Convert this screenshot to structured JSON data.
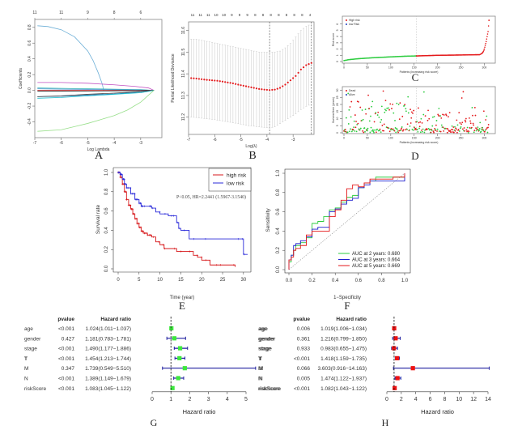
{
  "chart_data": [
    {
      "id": "A",
      "type": "line",
      "panel_label": "A",
      "title": "",
      "xlabel": "Log Lambda",
      "ylabel": "Coefficients",
      "xlim": [
        -7,
        -2.2
      ],
      "ylim": [
        -0.58,
        0.88
      ],
      "xticks": [
        -7,
        -6,
        -5,
        -4,
        -3
      ],
      "yticks": [
        -0.4,
        -0.2,
        0.0,
        0.2,
        0.4,
        0.6,
        0.8
      ],
      "top_axis_labels": [
        "11",
        "11",
        "9",
        "8",
        "6"
      ],
      "top_axis_positions": [
        -7,
        -6,
        -5,
        -4,
        -3
      ],
      "series": [
        {
          "name": "path1",
          "color": "#6baed6",
          "x": [
            -6.9,
            -6.5,
            -6.0,
            -5.5,
            -5.0,
            -4.8,
            -4.6,
            -4.45,
            -4.4
          ],
          "y": [
            0.82,
            0.81,
            0.77,
            0.68,
            0.5,
            0.38,
            0.22,
            0.08,
            0.0
          ]
        },
        {
          "name": "path2",
          "color": "#c251c2",
          "x": [
            -6.9,
            -6.0,
            -5.0,
            -4.0,
            -3.2,
            -2.7,
            -2.5
          ],
          "y": [
            0.1,
            0.1,
            0.09,
            0.07,
            0.05,
            0.03,
            0.0
          ]
        },
        {
          "name": "path3",
          "color": "#31b3b3",
          "x": [
            -6.9,
            -6.0,
            -5.0,
            -4.0,
            -3.0,
            -2.5
          ],
          "y": [
            0.03,
            0.025,
            0.02,
            0.015,
            0.01,
            0.0
          ]
        },
        {
          "name": "path4",
          "color": "#5b9bd5",
          "x": [
            -6.9,
            -6.0,
            -5.0,
            -4.0,
            -3.0,
            -2.5
          ],
          "y": [
            0.02,
            0.015,
            0.012,
            0.008,
            0.004,
            0.0
          ]
        },
        {
          "name": "path5",
          "color": "#d62728",
          "x": [
            -6.9,
            -6.0,
            -5.0,
            -4.0,
            -3.0,
            -2.5
          ],
          "y": [
            0.0,
            0.0,
            0.0,
            0.0,
            0.0,
            0.0
          ]
        },
        {
          "name": "path6",
          "color": "#222222",
          "x": [
            -6.9,
            -6.0,
            -5.0,
            -4.0,
            -3.0,
            -2.5
          ],
          "y": [
            -0.01,
            -0.01,
            -0.008,
            -0.006,
            -0.003,
            0.0
          ]
        },
        {
          "name": "path7",
          "color": "#1f77b4",
          "x": [
            -6.9,
            -6.0,
            -5.0,
            -4.0,
            -3.0,
            -2.5
          ],
          "y": [
            -0.08,
            -0.075,
            -0.06,
            -0.045,
            -0.02,
            0.0
          ]
        },
        {
          "name": "path8",
          "color": "#444444",
          "x": [
            -6.9,
            -6.0,
            -5.0,
            -4.0,
            -3.0,
            -2.5
          ],
          "y": [
            -0.08,
            -0.07,
            -0.05,
            -0.035,
            -0.015,
            0.0
          ]
        },
        {
          "name": "path9",
          "color": "#17becf",
          "x": [
            -6.9,
            -6.0,
            -5.0,
            -4.0,
            -3.0,
            -2.5
          ],
          "y": [
            -0.1,
            -0.09,
            -0.07,
            -0.05,
            -0.03,
            0.0
          ]
        },
        {
          "name": "path10",
          "color": "#98df8a",
          "x": [
            -6.9,
            -6.0,
            -5.5,
            -5.0,
            -4.5,
            -4.0,
            -3.5,
            -3.0,
            -2.5
          ],
          "y": [
            -0.52,
            -0.5,
            -0.46,
            -0.42,
            -0.37,
            -0.32,
            -0.25,
            -0.15,
            0.0
          ]
        }
      ]
    },
    {
      "id": "B",
      "type": "line",
      "panel_label": "B",
      "xlabel": "Log(λ)",
      "ylabel": "Partial Likelihood Deviance",
      "xlim": [
        -7,
        -2.2
      ],
      "ylim": [
        11.12,
        11.64
      ],
      "xticks": [
        -7,
        -6,
        -5,
        -4,
        -3
      ],
      "yticks": [
        11.2,
        11.3,
        11.4,
        11.5,
        11.6
      ],
      "top_axis_labels": [
        "11",
        "11",
        "11",
        "10",
        "10",
        "9",
        "9",
        "9",
        "8",
        "8",
        "8",
        "8",
        "8",
        "8",
        "8",
        "4"
      ],
      "vlines": [
        -3.9,
        -2.3
      ],
      "series": [
        {
          "name": "cv-mean",
          "color": "#e41a1c",
          "x": [
            -6.9,
            -6.7,
            -6.5,
            -6.3,
            -6.1,
            -5.9,
            -5.7,
            -5.5,
            -5.3,
            -5.1,
            -4.9,
            -4.7,
            -4.5,
            -4.3,
            -4.1,
            -3.9,
            -3.7,
            -3.5,
            -3.3,
            -3.1,
            -2.9,
            -2.7,
            -2.5,
            -2.3
          ],
          "y": [
            11.38,
            11.378,
            11.375,
            11.372,
            11.37,
            11.368,
            11.364,
            11.36,
            11.356,
            11.35,
            11.345,
            11.34,
            11.335,
            11.33,
            11.327,
            11.325,
            11.327,
            11.335,
            11.35,
            11.37,
            11.39,
            11.42,
            11.44,
            11.45
          ],
          "upper": [
            11.56,
            11.56,
            11.555,
            11.55,
            11.545,
            11.54,
            11.535,
            11.53,
            11.525,
            11.52,
            11.515,
            11.51,
            11.505,
            11.5,
            11.5,
            11.5,
            11.5,
            11.505,
            11.52,
            11.54,
            11.57,
            11.6,
            11.62,
            11.63
          ],
          "lower": [
            11.2,
            11.198,
            11.195,
            11.192,
            11.19,
            11.186,
            11.182,
            11.178,
            11.174,
            11.17,
            11.165,
            11.16,
            11.158,
            11.155,
            11.152,
            11.15,
            11.155,
            11.17,
            11.185,
            11.2,
            11.215,
            11.235,
            11.25,
            11.26
          ]
        }
      ]
    },
    {
      "id": "C",
      "type": "scatter",
      "panel_label": "C",
      "xlabel": "Patients (increasing risk score)",
      "ylabel": "Risk score",
      "xlim": [
        0,
        320
      ],
      "ylim": [
        0,
        7
      ],
      "xticks": [
        0,
        50,
        100,
        150,
        200,
        250,
        300
      ],
      "yticks": [
        0,
        1,
        2,
        3,
        4,
        5,
        6
      ],
      "vline": 155,
      "legend": [
        {
          "label": "High risk",
          "color": "#e41a1c"
        },
        {
          "label": "low Risk",
          "color": "#1f3fbf"
        }
      ],
      "series": [
        {
          "name": "low risk",
          "color": "#2ecc40",
          "x": [
            0,
            10,
            30,
            60,
            100,
            130,
            155
          ],
          "y": [
            0.15,
            0.3,
            0.45,
            0.6,
            0.75,
            0.85,
            0.9
          ]
        },
        {
          "name": "high risk",
          "color": "#e41a1c",
          "x": [
            155,
            200,
            250,
            290,
            295,
            298,
            300,
            302,
            304,
            306,
            308,
            310
          ],
          "y": [
            0.9,
            1.0,
            1.05,
            1.1,
            1.3,
            1.6,
            2.0,
            2.6,
            3.2,
            4.0,
            4.8,
            6.6
          ]
        }
      ]
    },
    {
      "id": "D",
      "type": "scatter",
      "panel_label": "D",
      "xlabel": "Patients (increasing risk score)",
      "ylabel": "Survival time (years)",
      "xlim": [
        0,
        320
      ],
      "ylim": [
        0,
        32
      ],
      "xticks": [
        0,
        50,
        100,
        150,
        200,
        250,
        300
      ],
      "yticks": [
        0,
        5,
        10,
        15,
        20,
        25,
        30
      ],
      "vline": 155,
      "legend": [
        {
          "label": "Dead",
          "color": "#e41a1c"
        },
        {
          "label": "Alive",
          "color": "#1f3fbf"
        }
      ]
    },
    {
      "id": "E",
      "type": "line",
      "panel_label": "E",
      "xlabel": "Time (year)",
      "ylabel": "Survival rate",
      "xlim": [
        0,
        31
      ],
      "ylim": [
        0,
        1.0
      ],
      "xticks": [
        0,
        5,
        10,
        15,
        20,
        25,
        30
      ],
      "yticks": [
        0.0,
        0.2,
        0.4,
        0.6,
        0.8,
        1.0
      ],
      "annotation": "P<0.05, HR=2.2441 (1.5967-3.1540)",
      "legend": [
        {
          "label": "high risk",
          "color": "#d7191c"
        },
        {
          "label": "low risk",
          "color": "#2b2bd9"
        }
      ],
      "series": [
        {
          "name": "high risk",
          "color": "#d7191c",
          "x": [
            0,
            0.5,
            1,
            1.5,
            2,
            2.5,
            3,
            3.5,
            4,
            4.5,
            5,
            5.5,
            6,
            7,
            8,
            9,
            10,
            11,
            12,
            14,
            16,
            18,
            19,
            20,
            22,
            24,
            26,
            28
          ],
          "y": [
            1.0,
            0.95,
            0.88,
            0.8,
            0.72,
            0.66,
            0.62,
            0.57,
            0.52,
            0.47,
            0.43,
            0.39,
            0.37,
            0.35,
            0.33,
            0.28,
            0.25,
            0.21,
            0.21,
            0.18,
            0.18,
            0.14,
            0.12,
            0.09,
            0.04,
            0.04,
            0.04,
            0.02
          ]
        },
        {
          "name": "low risk",
          "color": "#2b2bd9",
          "x": [
            0,
            0.5,
            1,
            1.5,
            2,
            3,
            4,
            5,
            5.5,
            6,
            8,
            9,
            10,
            12,
            13,
            14,
            14.5,
            15,
            17,
            20,
            25,
            29.5,
            30,
            31
          ],
          "y": [
            1.0,
            0.98,
            0.93,
            0.88,
            0.84,
            0.78,
            0.72,
            0.68,
            0.65,
            0.65,
            0.63,
            0.59,
            0.57,
            0.55,
            0.55,
            0.48,
            0.42,
            0.4,
            0.31,
            0.31,
            0.31,
            0.31,
            0.15,
            0.15
          ]
        }
      ]
    },
    {
      "id": "F",
      "type": "line",
      "panel_label": "F",
      "xlabel": "1−Specificity",
      "ylabel": "Sensitivity",
      "xlim": [
        0,
        1
      ],
      "ylim": [
        0,
        1
      ],
      "xticks": [
        0.0,
        0.2,
        0.4,
        0.6,
        0.8,
        1.0
      ],
      "yticks": [
        0.0,
        0.2,
        0.4,
        0.6,
        0.8,
        1.0
      ],
      "legend": [
        {
          "label": "AUC at 2 years: 0.680",
          "color": "#2ecc40"
        },
        {
          "label": "AUC at 3 years: 0.664",
          "color": "#1f1fcf"
        },
        {
          "label": "AUC at 5 years: 0.669",
          "color": "#e41a1c"
        }
      ],
      "series": [
        {
          "name": "2 years",
          "color": "#2ecc40",
          "auc": 0.68,
          "x": [
            0,
            0,
            0.02,
            0.04,
            0.06,
            0.1,
            0.15,
            0.2,
            0.25,
            0.3,
            0.35,
            0.4,
            0.45,
            0.5,
            0.55,
            0.6,
            0.65,
            0.7,
            0.75,
            0.8,
            0.9,
            1.0
          ],
          "y": [
            0,
            0.08,
            0.15,
            0.2,
            0.25,
            0.28,
            0.33,
            0.48,
            0.5,
            0.55,
            0.62,
            0.64,
            0.7,
            0.75,
            0.77,
            0.85,
            0.9,
            0.92,
            0.96,
            0.96,
            0.96,
            1.0
          ]
        },
        {
          "name": "3 years",
          "color": "#1f1fcf",
          "auc": 0.664,
          "x": [
            0,
            0,
            0.02,
            0.04,
            0.06,
            0.1,
            0.15,
            0.2,
            0.25,
            0.3,
            0.35,
            0.4,
            0.45,
            0.5,
            0.55,
            0.6,
            0.65,
            0.7,
            0.75,
            0.8,
            0.9,
            1.0
          ],
          "y": [
            0,
            0.1,
            0.15,
            0.25,
            0.27,
            0.3,
            0.34,
            0.42,
            0.44,
            0.44,
            0.6,
            0.63,
            0.68,
            0.72,
            0.74,
            0.85,
            0.88,
            0.92,
            0.92,
            0.92,
            0.92,
            1.0
          ]
        },
        {
          "name": "5 years",
          "color": "#e41a1c",
          "auc": 0.669,
          "x": [
            0,
            0,
            0.02,
            0.04,
            0.06,
            0.1,
            0.15,
            0.2,
            0.25,
            0.3,
            0.35,
            0.4,
            0.45,
            0.5,
            0.55,
            0.6,
            0.65,
            0.7,
            0.75,
            0.8,
            0.9,
            1.0
          ],
          "y": [
            0,
            0.1,
            0.13,
            0.2,
            0.22,
            0.25,
            0.36,
            0.4,
            0.4,
            0.4,
            0.55,
            0.62,
            0.72,
            0.84,
            0.88,
            0.86,
            0.9,
            0.94,
            0.94,
            0.94,
            0.96,
            1.0
          ]
        }
      ]
    },
    {
      "id": "G",
      "type": "forest",
      "panel_label": "G",
      "xlabel": "Hazard ratio",
      "xlim": [
        0,
        5
      ],
      "xticks": [
        0,
        1,
        2,
        3,
        4,
        5
      ],
      "ref_line": 1,
      "marker_color": "#3ee83e",
      "ci_color": "#1f1f9f",
      "columns": [
        "pvalue",
        "Hazard ratio"
      ],
      "rows": [
        {
          "variable": "age",
          "pvalue": "<0.001",
          "hr_text": "1.024(1.011−1.037)",
          "hr": 1.024,
          "lo": 1.011,
          "hi": 1.037
        },
        {
          "variable": "gender",
          "pvalue": "0.427",
          "hr_text": "1.181(0.783−1.781)",
          "hr": 1.181,
          "lo": 0.783,
          "hi": 1.781
        },
        {
          "variable": "stage",
          "pvalue": "<0.001",
          "hr_text": "1.490(1.177−1.886)",
          "hr": 1.49,
          "lo": 1.177,
          "hi": 1.886
        },
        {
          "variable": "T",
          "pvalue": "<0.001",
          "hr_text": "1.454(1.213−1.744)",
          "hr": 1.454,
          "lo": 1.213,
          "hi": 1.744
        },
        {
          "variable": "M",
          "pvalue": "0.347",
          "hr_text": "1.739(0.549−5.510)",
          "hr": 1.739,
          "lo": 0.549,
          "hi": 5.51
        },
        {
          "variable": "N",
          "pvalue": "<0.001",
          "hr_text": "1.389(1.149−1.679)",
          "hr": 1.389,
          "lo": 1.149,
          "hi": 1.679
        },
        {
          "variable": "riskScore",
          "pvalue": "<0.001",
          "hr_text": "1.083(1.045−1.122)",
          "hr": 1.083,
          "lo": 1.045,
          "hi": 1.122
        }
      ]
    },
    {
      "id": "H",
      "type": "forest",
      "panel_label": "H",
      "xlabel": "Hazard ratio",
      "xlim": [
        0,
        14
      ],
      "xticks": [
        0,
        2,
        4,
        6,
        8,
        10,
        12,
        14
      ],
      "ref_line": 1,
      "marker_color": "#ee1111",
      "ci_color": "#1f1f9f",
      "columns": [
        "pvalue",
        "Hazard ratio"
      ],
      "rows": [
        {
          "variable": "age",
          "pvalue": "0.006",
          "hr_text": "1.019(1.006−1.034)",
          "hr": 1.019,
          "lo": 1.006,
          "hi": 1.034
        },
        {
          "variable": "gender",
          "pvalue": "0.361",
          "hr_text": "1.216(0.799−1.850)",
          "hr": 1.216,
          "lo": 0.799,
          "hi": 1.85
        },
        {
          "variable": "stage",
          "pvalue": "0.933",
          "hr_text": "0.983(0.655−1.475)",
          "hr": 0.983,
          "lo": 0.655,
          "hi": 1.475
        },
        {
          "variable": "T",
          "pvalue": "<0.001",
          "hr_text": "1.418(1.159−1.735)",
          "hr": 1.418,
          "lo": 1.159,
          "hi": 1.735
        },
        {
          "variable": "M",
          "pvalue": "0.066",
          "hr_text": "3.603(0.916−14.163)",
          "hr": 3.603,
          "lo": 0.916,
          "hi": 14.163
        },
        {
          "variable": "N",
          "pvalue": "0.005",
          "hr_text": "1.474(1.122−1.937)",
          "hr": 1.474,
          "lo": 1.122,
          "hi": 1.937
        },
        {
          "variable": "riskScore",
          "pvalue": "<0.001",
          "hr_text": "1.082(1.043−1.122)",
          "hr": 1.082,
          "lo": 1.043,
          "hi": 1.122
        }
      ]
    }
  ]
}
